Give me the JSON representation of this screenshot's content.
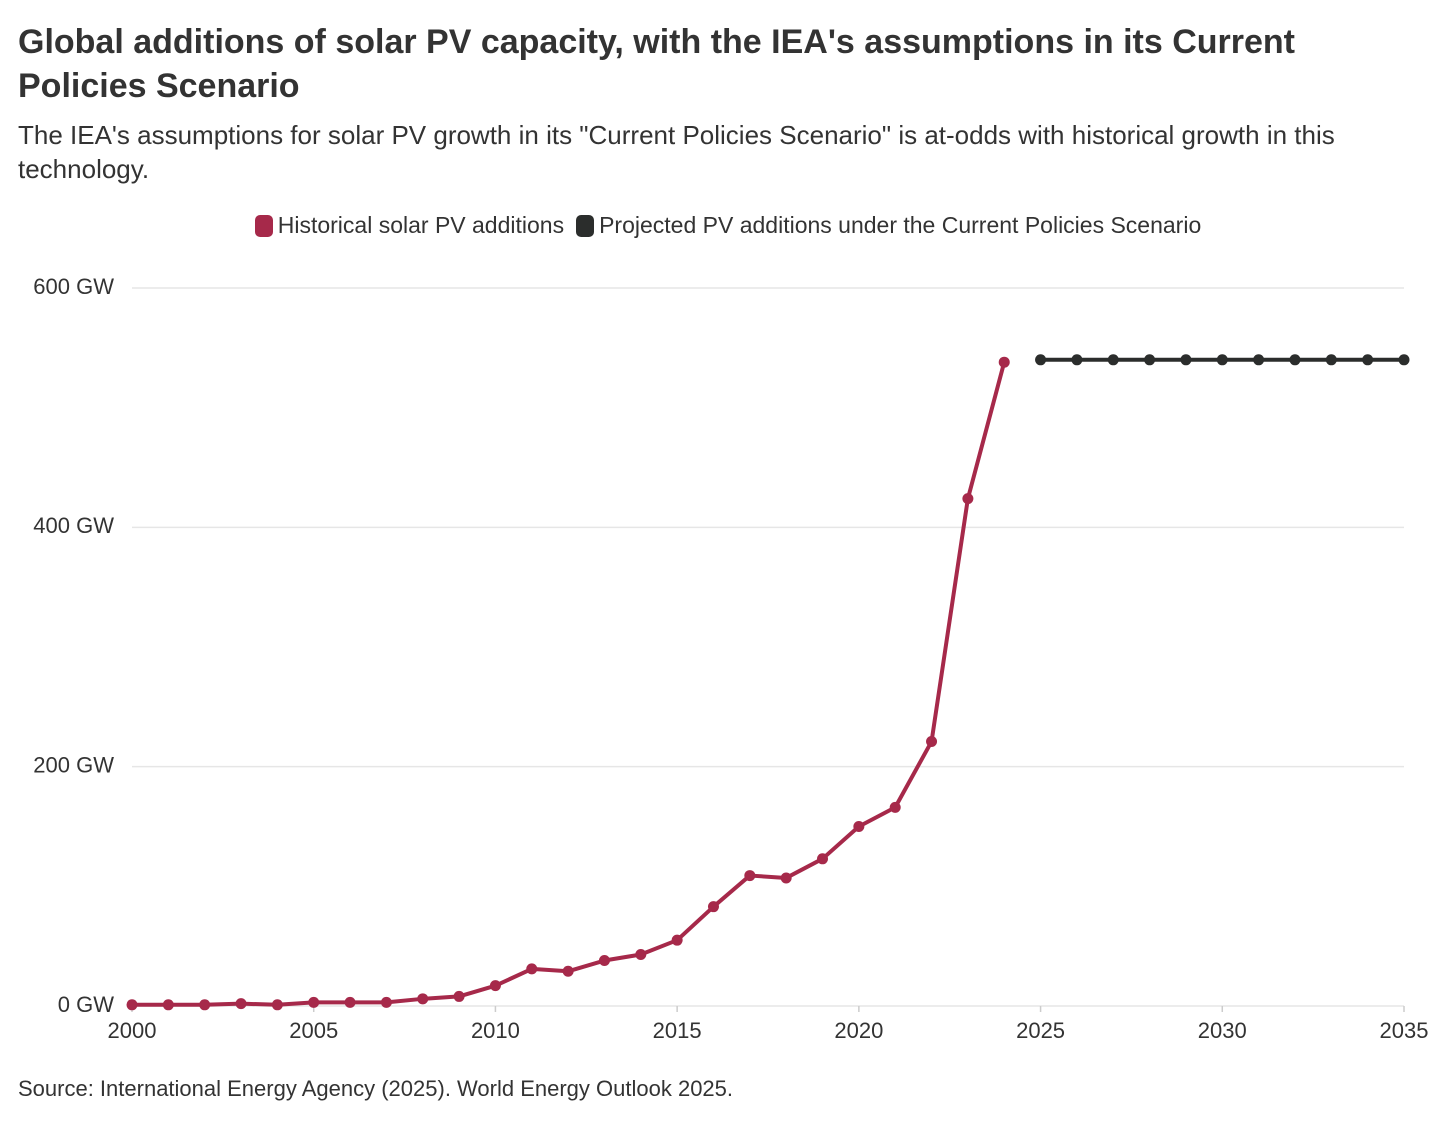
{
  "chart_data": {
    "type": "line",
    "title": "Global additions of solar PV capacity, with the IEA's assumptions in its Current Policies Scenario",
    "subtitle": "The IEA's assumptions for solar PV growth in its \"Current Policies Scenario\" is at-odds with historical growth in this technology.",
    "source": "Source: International Energy Agency (2025). World Energy Outlook 2025.",
    "x": [
      2000,
      2001,
      2002,
      2003,
      2004,
      2005,
      2006,
      2007,
      2008,
      2009,
      2010,
      2011,
      2012,
      2013,
      2014,
      2015,
      2016,
      2017,
      2018,
      2019,
      2020,
      2021,
      2022,
      2023,
      2024,
      2025,
      2026,
      2027,
      2028,
      2029,
      2030,
      2031,
      2032,
      2033,
      2034,
      2035
    ],
    "series": [
      {
        "name": "Historical solar PV additions",
        "color": "#a6294a",
        "values": [
          1,
          1,
          1,
          2,
          1,
          3,
          3,
          3,
          6,
          8,
          17,
          31,
          29,
          38,
          43,
          55,
          83,
          109,
          107,
          123,
          150,
          166,
          221,
          424,
          538,
          null,
          null,
          null,
          null,
          null,
          null,
          null,
          null,
          null,
          null,
          null
        ]
      },
      {
        "name": "Projected PV additions under the Current Policies Scenario",
        "color": "#2b2d2c",
        "values": [
          null,
          null,
          null,
          null,
          null,
          null,
          null,
          null,
          null,
          null,
          null,
          null,
          null,
          null,
          null,
          null,
          null,
          null,
          null,
          null,
          null,
          null,
          null,
          null,
          null,
          540,
          540,
          540,
          540,
          540,
          540,
          540,
          540,
          540,
          540,
          540
        ]
      }
    ],
    "xlim": [
      2000,
      2035
    ],
    "xticks": [
      2000,
      2005,
      2010,
      2015,
      2020,
      2025,
      2030,
      2035
    ],
    "ylim": [
      0,
      600
    ],
    "yticks": [
      {
        "value": 0,
        "label": "0 GW"
      },
      {
        "value": 200,
        "label": "200 GW"
      },
      {
        "value": 400,
        "label": "400 GW"
      },
      {
        "value": 600,
        "label": "600 GW"
      }
    ],
    "grid": true
  }
}
